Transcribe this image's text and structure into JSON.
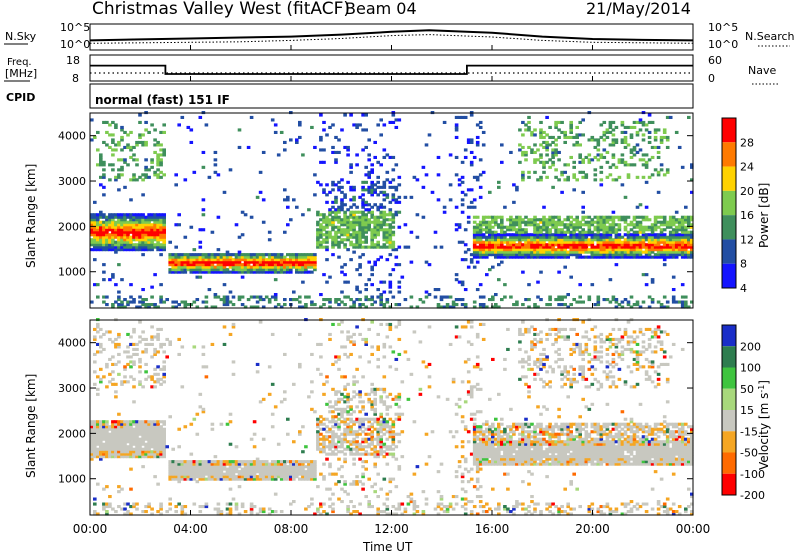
{
  "header": {
    "station": "Christmas Valley West (fitACF)",
    "beam": "Beam 04",
    "date": "21/May/2014"
  },
  "strip_labels": {
    "nsky": "N.Sky",
    "nsky_ticks": [
      "10^5",
      "10^0"
    ],
    "nsearch": "N.Search",
    "nsearch_ticks": [
      "10^5",
      "10^0"
    ],
    "freq": "Freq.",
    "freq_unit": "[MHz]",
    "freq_ticks": [
      "18",
      "8"
    ],
    "nave": "Nave",
    "nave_ticks": [
      "60",
      "0"
    ],
    "cpid": "CPID",
    "mode": "normal (fast) 151 IF"
  },
  "chart_data": [
    {
      "type": "line",
      "title": "N.Sky / N.Search",
      "x": [
        "00:00",
        "02:00",
        "04:00",
        "06:00",
        "08:00",
        "10:00",
        "12:00",
        "13:30",
        "16:00",
        "18:00",
        "20:00",
        "22:00",
        "24:00"
      ],
      "series": [
        {
          "name": "N.Sky",
          "values": [
            2.0,
            2.2,
            2.4,
            2.6,
            2.8,
            3.2,
            3.8,
            4.1,
            3.6,
            2.8,
            2.3,
            2.1,
            2.0
          ]
        },
        {
          "name": "N.Search",
          "values": [
            1.4,
            1.5,
            1.6,
            1.7,
            2.0,
            2.4,
            3.0,
            3.2,
            2.7,
            2.0,
            1.6,
            1.5,
            1.4
          ]
        }
      ],
      "ylim_log10": [
        0,
        5
      ]
    },
    {
      "type": "line",
      "title": "Freq. / Nave",
      "x": [
        "00:00",
        "03:00",
        "03:00",
        "15:00",
        "15:00",
        "24:00"
      ],
      "series": [
        {
          "name": "Freq.",
          "values": [
            14,
            14,
            10.5,
            10.5,
            14,
            14
          ]
        },
        {
          "name": "Nave",
          "values": [
            15,
            15,
            15,
            15,
            15,
            15
          ]
        }
      ],
      "ylim": [
        8,
        18
      ]
    },
    {
      "type": "heatmap",
      "xlabel": "Time UT",
      "ylabel": "Slant Range [km]",
      "colorbar_label": "Power [dB]",
      "colorbar_ticks": [
        "28",
        "24",
        "20",
        "16",
        "12",
        "8",
        "4"
      ],
      "colors": [
        "#ff0000",
        "#ff7a00",
        "#ffd200",
        "#7ecb4f",
        "#3f8f5c",
        "#224ea3",
        "#1414ff"
      ],
      "yticks": [
        "4000",
        "3000",
        "2000",
        "1000"
      ],
      "ylim": [
        200,
        4500
      ],
      "xlim_hours": [
        0,
        24
      ],
      "bands": [
        {
          "t0": 0,
          "t1": 3,
          "r0": 1450,
          "r1": 2250,
          "level": "strong"
        },
        {
          "t0": 3.1,
          "t1": 9,
          "r0": 950,
          "r1": 1400,
          "level": "strong"
        },
        {
          "t0": 9,
          "t1": 12,
          "r0": 1500,
          "r1": 2300,
          "level": "medium"
        },
        {
          "t0": 15.2,
          "t1": 24,
          "r0": 1300,
          "r1": 1800,
          "level": "strong"
        },
        {
          "t0": 15.2,
          "t1": 24,
          "r0": 1800,
          "r1": 2200,
          "level": "medium"
        },
        {
          "t0": 9.5,
          "t1": 12.5,
          "r0": 2200,
          "r1": 3000,
          "level": "weak"
        }
      ]
    },
    {
      "type": "heatmap",
      "xlabel": "Time UT",
      "ylabel": "Slant Range [km]",
      "colorbar_label": "Velocity [m s^-1]",
      "colorbar_ticks": [
        "200",
        "100",
        "50",
        "15",
        "-15",
        "-50",
        "-100",
        "-200"
      ],
      "colors": [
        "#1a2ec8",
        "#2e7d4f",
        "#3fc43f",
        "#a8d87c",
        "#c8c8c0",
        "#f5a623",
        "#ff6a00",
        "#ff0000"
      ],
      "yticks": [
        "4000",
        "3000",
        "2000",
        "1000"
      ],
      "ylim": [
        200,
        4500
      ],
      "xlim_hours": [
        0,
        24
      ]
    }
  ],
  "x_ticks": [
    "00:00",
    "04:00",
    "08:00",
    "12:00",
    "16:00",
    "20:00",
    "00:00"
  ],
  "x_axis_label": "Time UT"
}
